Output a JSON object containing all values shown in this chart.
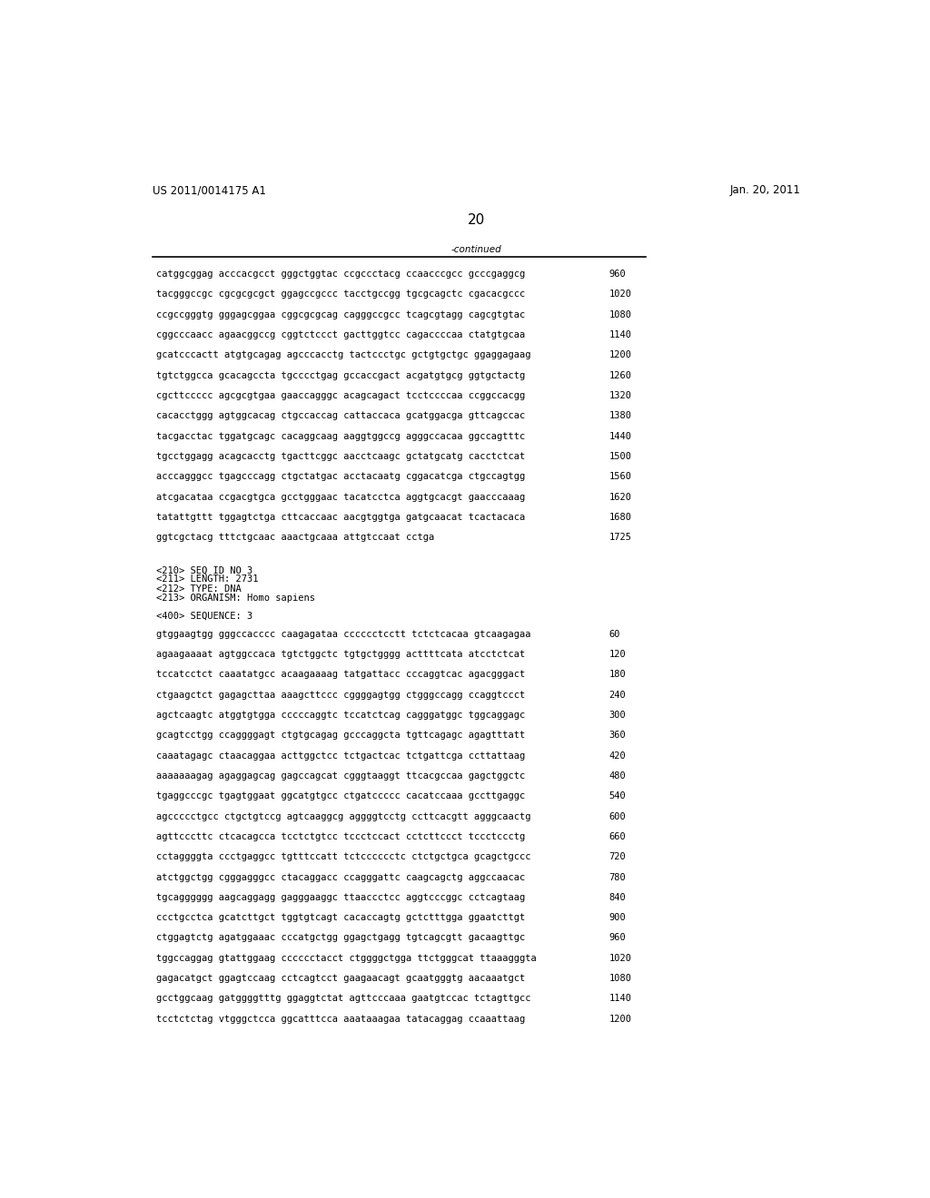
{
  "header_left": "US 2011/0014175 A1",
  "header_right": "Jan. 20, 2011",
  "page_number": "20",
  "continued_label": "-continued",
  "background_color": "#ffffff",
  "text_color": "#000000",
  "font_size_body": 7.5,
  "font_size_header": 8.5,
  "font_size_page": 11,
  "sequence_lines_part1": [
    [
      "catggcggag acccacgcct gggctggtac ccgccctacg ccaacccgcc gcccgaggcg",
      "960"
    ],
    [
      "tacgggccgc cgcgcgcgct ggagccgccc tacctgccgg tgcgcagctc cgacacgccc",
      "1020"
    ],
    [
      "ccgccgggtg gggagcggaa cggcgcgcag cagggccgcc tcagcgtagg cagcgtgtac",
      "1080"
    ],
    [
      "cggcccaacc agaacggccg cggtctccct gacttggtcc cagaccccaa ctatgtgcaa",
      "1140"
    ],
    [
      "gcatcccactt atgtgcagag agcccacctg tactccctgc gctgtgctgc ggaggagaag",
      "1200"
    ],
    [
      "tgtctggcca gcacagccta tgcccctgag gccaccgact acgatgtgcg ggtgctactg",
      "1260"
    ],
    [
      "cgcttccccc agcgcgtgaa gaaccagggc acagcagact tcctccccaa ccggccacgg",
      "1320"
    ],
    [
      "cacacctggg agtggcacag ctgccaccag cattaccaca gcatggacga gttcagccac",
      "1380"
    ],
    [
      "tacgacctac tggatgcagc cacaggcaag aaggtggccg agggccacaa ggccagtttc",
      "1440"
    ],
    [
      "tgcctggagg acagcacctg tgacttcggc aacctcaagc gctatgcatg cacctctcat",
      "1500"
    ],
    [
      "acccagggcc tgagcccagg ctgctatgac acctacaatg cggacatcga ctgccagtgg",
      "1560"
    ],
    [
      "atcgacataa ccgacgtgca gcctgggaac tacatcctca aggtgcacgt gaacccaaag",
      "1620"
    ],
    [
      "tatattgttt tggagtctga cttcaccaac aacgtggtga gatgcaacat tcactacaca",
      "1680"
    ],
    [
      "ggtcgctacg tttctgcaac aaactgcaaa attgtccaat cctga",
      "1725"
    ]
  ],
  "seq_info_lines": [
    "<210> SEQ ID NO 3",
    "<211> LENGTH: 2731",
    "<212> TYPE: DNA",
    "<213> ORGANISM: Homo sapiens"
  ],
  "seq_header": "<400> SEQUENCE: 3",
  "sequence_lines_part2": [
    [
      "gtggaagtgg gggccacccc caagagataa cccccctcctt tctctcacaa gtcaagagaa",
      "60"
    ],
    [
      "agaagaaaat agtggccaca tgtctggctc tgtgctgggg acttttcata atcctctcat",
      "120"
    ],
    [
      "tccatcctct caaatatgcc acaagaaaag tatgattacc cccaggtcac agacgggact",
      "180"
    ],
    [
      "ctgaagctct gagagcttaa aaagcttccc cggggagtgg ctgggccagg ccaggtccct",
      "240"
    ],
    [
      "agctcaagtc atggtgtgga cccccaggtc tccatctcag cagggatggc tggcaggagc",
      "300"
    ],
    [
      "gcagtcctgg ccaggggagt ctgtgcagag gcccaggcta tgttcagagc agagtttatt",
      "360"
    ],
    [
      "caaatagagc ctaacaggaa acttggctcc tctgactcac tctgattcga ccttattaag",
      "420"
    ],
    [
      "aaaaaaagag agaggagcag gagccagcat cgggtaaggt ttcacgccaa gagctggctc",
      "480"
    ],
    [
      "tgaggcccgc tgagtggaat ggcatgtgcc ctgatccccc cacatccaaa gccttgaggc",
      "540"
    ],
    [
      "agccccctgcc ctgctgtccg agtcaaggcg aggggtcctg ccttcacgtt agggcaactg",
      "600"
    ],
    [
      "agttcccttc ctcacagcca tcctctgtcc tccctccact cctcttccct tccctccctg",
      "660"
    ],
    [
      "cctaggggta ccctgaggcc tgtttccatt tctcccccctc ctctgctgca gcagctgccc",
      "720"
    ],
    [
      "atctggctgg cgggagggcc ctacaggacc ccagggattc caagcagctg aggccaacac",
      "780"
    ],
    [
      "tgcagggggg aagcaggagg gagggaaggc ttaaccctcc aggtcccggc cctcagtaag",
      "840"
    ],
    [
      "ccctgcctca gcatcttgct tggtgtcagt cacaccagtg gctctttgga ggaatcttgt",
      "900"
    ],
    [
      "ctggagtctg agatggaaac cccatgctgg ggagctgagg tgtcagcgtt gacaagttgc",
      "960"
    ],
    [
      "tggccaggag gtattggaag cccccctacct ctggggctgga ttctgggcat ttaaagggta",
      "1020"
    ],
    [
      "gagacatgct ggagtccaag cctcagtcct gaagaacagt gcaatgggtg aacaaatgct",
      "1080"
    ],
    [
      "gcctggcaag gatggggtttg ggaggtctat agttcccaaa gaatgtccac tctagttgcc",
      "1140"
    ],
    [
      "tcctctctag vtgggctcca ggcatttcca aaataaagaa tatacaggag ccaaattaag",
      "1200"
    ]
  ]
}
